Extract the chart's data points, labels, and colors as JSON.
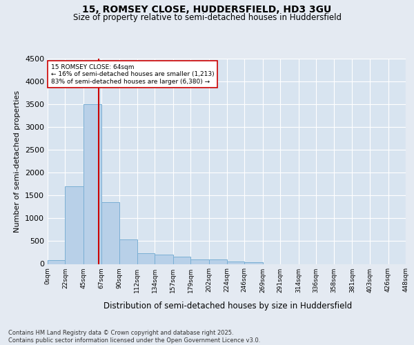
{
  "title1": "15, ROMSEY CLOSE, HUDDERSFIELD, HD3 3GU",
  "title2": "Size of property relative to semi-detached houses in Huddersfield",
  "xlabel": "Distribution of semi-detached houses by size in Huddersfield",
  "ylabel": "Number of semi-detached properties",
  "footnote": "Contains HM Land Registry data © Crown copyright and database right 2025.\nContains public sector information licensed under the Open Government Licence v3.0.",
  "bar_color": "#b8d0e8",
  "bar_edge_color": "#7aafd4",
  "bg_color": "#e4eaf2",
  "plot_bg_color": "#d8e4f0",
  "grid_color": "#ffffff",
  "red_line_color": "#cc0000",
  "subject_label": "15 ROMSEY CLOSE: 64sqm",
  "smaller_label": "← 16% of semi-detached houses are smaller (1,213)",
  "larger_label": "83% of semi-detached houses are larger (6,380) →",
  "subject_size": 64,
  "ylim": [
    0,
    4500
  ],
  "yticks": [
    0,
    500,
    1000,
    1500,
    2000,
    2500,
    3000,
    3500,
    4000,
    4500
  ],
  "bin_edges": [
    0,
    22,
    45,
    67,
    90,
    112,
    134,
    157,
    179,
    202,
    224,
    246,
    269,
    291,
    314,
    336,
    358,
    381,
    403,
    426,
    448
  ],
  "bin_labels": [
    "0sqm",
    "22sqm",
    "45sqm",
    "67sqm",
    "90sqm",
    "112sqm",
    "134sqm",
    "157sqm",
    "179sqm",
    "202sqm",
    "224sqm",
    "246sqm",
    "269sqm",
    "291sqm",
    "314sqm",
    "336sqm",
    "358sqm",
    "381sqm",
    "403sqm",
    "426sqm",
    "448sqm"
  ],
  "bar_heights": [
    80,
    1700,
    3500,
    1350,
    530,
    240,
    200,
    165,
    105,
    95,
    55,
    45,
    0,
    0,
    0,
    0,
    0,
    0,
    0,
    0
  ]
}
